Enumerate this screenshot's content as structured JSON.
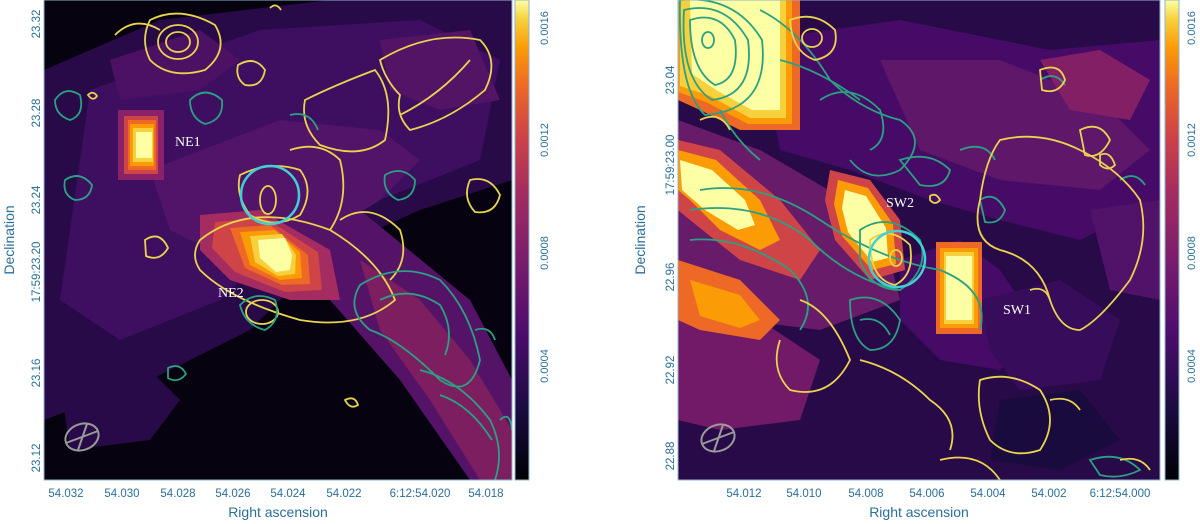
{
  "chart_data": [
    {
      "type": "heatmap",
      "title": "",
      "xlabel": "Right ascension",
      "ylabel": "Declination",
      "x_ticks": [
        "54.032",
        "54.030",
        "54.028",
        "54.026",
        "54.024",
        "54.022",
        "6:12:54.020",
        "54.018"
      ],
      "y_ticks": [
        "23.12",
        "23.16",
        "17:59:23.20",
        "23.24",
        "23.28",
        "23.32"
      ],
      "colorbar_ticks": [
        "0.0004",
        "0.0008",
        "0.0012",
        "0.0016"
      ],
      "colorbar_range": [
        0,
        0.0017
      ],
      "colormap": "inferno",
      "sources": [
        {
          "name": "NE1",
          "x": 54.0293,
          "y": 23.262,
          "peak": 0.0017
        },
        {
          "name": "NE2",
          "x": 54.0245,
          "y": 23.205,
          "peak": 0.0019
        }
      ],
      "circle": {
        "x": 54.0253,
        "y": 23.237
      },
      "contour_colors": [
        "#e8d44d",
        "#2aa182"
      ],
      "beam_color": "#9a9a9a"
    },
    {
      "type": "heatmap",
      "title": "",
      "xlabel": "Right ascension",
      "ylabel": "Declination",
      "x_ticks": [
        "54.012",
        "54.010",
        "54.008",
        "54.006",
        "54.004",
        "54.002",
        "6:12:54.000"
      ],
      "y_ticks": [
        "22.88",
        "22.92",
        "22.96",
        "17:59:23.00",
        "23.04"
      ],
      "colorbar_ticks": [
        "0.0004",
        "0.0008",
        "0.0012",
        "0.0016"
      ],
      "colorbar_range": [
        0,
        0.0017
      ],
      "colormap": "inferno",
      "sources": [
        {
          "name": "SW2",
          "x": 54.0081,
          "y": 22.978,
          "peak": 0.0019
        },
        {
          "name": "SW1",
          "x": 54.0055,
          "y": 22.955,
          "peak": 0.0019
        }
      ],
      "circle": {
        "x": 54.0072,
        "y": 22.962
      },
      "contour_colors": [
        "#e8d44d",
        "#2aa182"
      ],
      "beam_color": "#9a9a9a"
    }
  ],
  "colors": {
    "axis_text": "#2a6f97",
    "frame": "#8fb6cc",
    "circle": "#3fd0d6",
    "label": "#ffffff"
  }
}
